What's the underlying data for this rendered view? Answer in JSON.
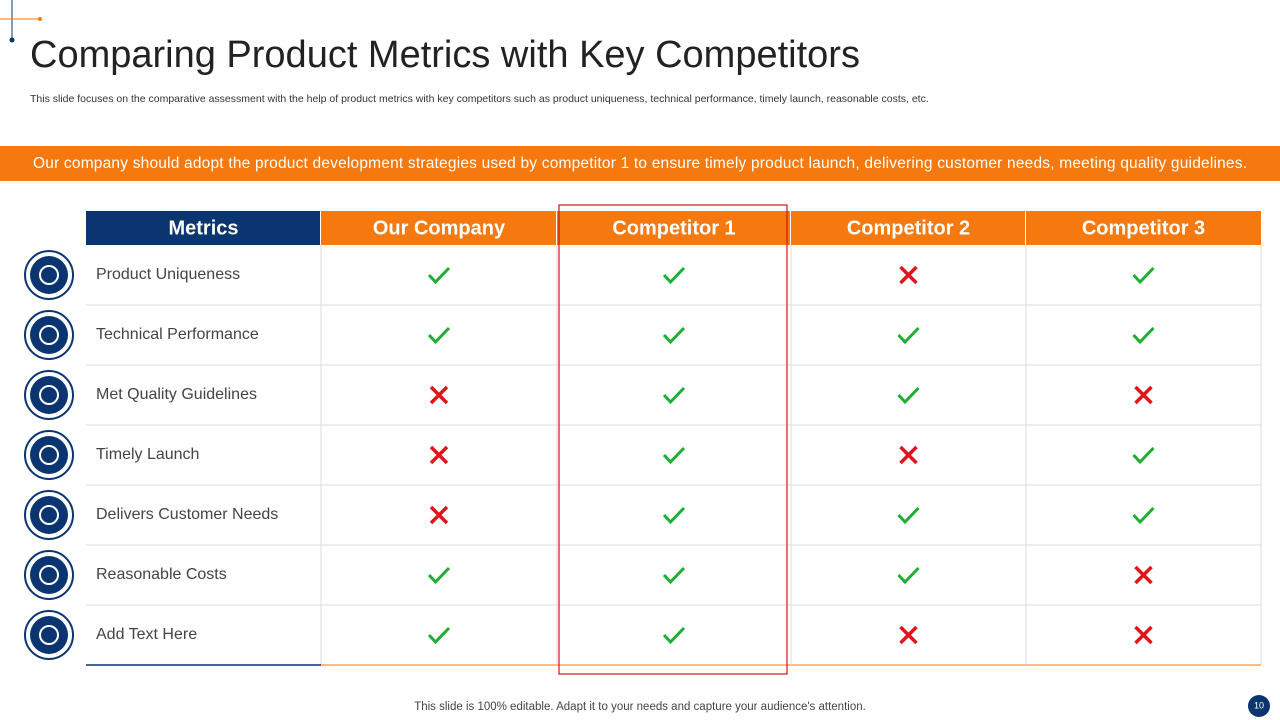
{
  "header": {
    "title": "Comparing Product Metrics with Key Competitors",
    "subtitle": "This slide focuses on the comparative assessment with the help of product metrics with key competitors such as product uniqueness, technical performance, timely launch, reasonable costs, etc."
  },
  "banner": "Our company should adopt the product development strategies used by competitor 1 to ensure timely product launch, delivering customer needs, meeting quality guidelines.",
  "table": {
    "columns": [
      "Metrics",
      "Our Company",
      "Competitor  1",
      "Competitor  2",
      "Competitor  3"
    ],
    "rows": [
      {
        "metric": "Product Uniqueness",
        "values": [
          true,
          true,
          false,
          true
        ]
      },
      {
        "metric": "Technical  Performance",
        "values": [
          true,
          true,
          true,
          true
        ]
      },
      {
        "metric": "Met Quality  Guidelines",
        "values": [
          false,
          true,
          true,
          false
        ]
      },
      {
        "metric": "Timely  Launch",
        "values": [
          false,
          true,
          false,
          true
        ]
      },
      {
        "metric": "Delivers Customer Needs",
        "values": [
          false,
          true,
          true,
          true
        ]
      },
      {
        "metric": "Reasonable Costs",
        "values": [
          true,
          true,
          true,
          false
        ]
      },
      {
        "metric": "Add Text Here",
        "values": [
          true,
          true,
          false,
          false
        ]
      }
    ]
  },
  "footer": {
    "note": "This slide is 100% editable. Adapt it to your needs and capture your audience's attention.",
    "page": 10
  }
}
